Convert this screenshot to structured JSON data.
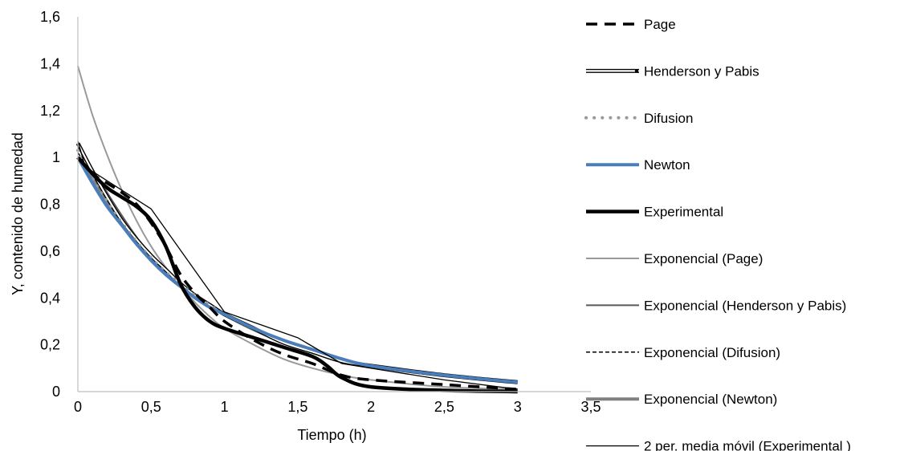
{
  "chart_data": {
    "type": "line",
    "title": "",
    "xlabel": "Tiempo (h)",
    "ylabel": "Y, contenido de humedad",
    "xlim": [
      0,
      3.5
    ],
    "ylim": [
      0,
      1.6
    ],
    "x_ticks": [
      "0",
      "0,5",
      "1",
      "1,5",
      "2",
      "2,5",
      "3",
      "3,5"
    ],
    "y_ticks": [
      "0",
      "0,2",
      "0,4",
      "0,6",
      "0,8",
      "1",
      "1,2",
      "1,4",
      "1,6"
    ],
    "grid": false,
    "legend_position": "right",
    "series": [
      {
        "name": "Page",
        "color": "#000000",
        "style": "dashed-thick",
        "x": [
          0,
          0.1,
          0.2,
          0.3,
          0.4,
          0.5,
          0.6,
          0.7,
          0.8,
          0.9,
          1.0,
          1.2,
          1.4,
          1.6,
          1.8,
          2.0,
          2.5,
          3.0
        ],
        "y": [
          1.0,
          0.93,
          0.89,
          0.85,
          0.8,
          0.72,
          0.62,
          0.5,
          0.42,
          0.36,
          0.3,
          0.22,
          0.16,
          0.12,
          0.07,
          0.05,
          0.03,
          0.01
        ]
      },
      {
        "name": "Henderson y Pabis",
        "color": "#000000",
        "style": "double",
        "x": [
          0,
          0.1,
          0.2,
          0.3,
          0.4,
          0.5,
          0.6,
          0.7,
          0.8,
          0.9,
          1.0,
          1.2,
          1.4,
          1.6,
          1.8,
          2.0,
          2.5,
          3.0
        ],
        "y": [
          1.06,
          0.94,
          0.83,
          0.73,
          0.65,
          0.58,
          0.52,
          0.46,
          0.41,
          0.37,
          0.33,
          0.27,
          0.21,
          0.17,
          0.13,
          0.11,
          0.07,
          0.04
        ]
      },
      {
        "name": "Difusion",
        "color": "#999999",
        "style": "dotted",
        "x": [
          0,
          0.1,
          0.2,
          0.3,
          0.4,
          0.5,
          0.6,
          0.7,
          0.8,
          0.9,
          1.0,
          1.2,
          1.4,
          1.6,
          1.8,
          2.0,
          2.5,
          3.0
        ],
        "y": [
          1.03,
          0.91,
          0.81,
          0.72,
          0.64,
          0.57,
          0.51,
          0.46,
          0.41,
          0.37,
          0.33,
          0.27,
          0.22,
          0.18,
          0.14,
          0.11,
          0.07,
          0.04
        ]
      },
      {
        "name": "Newton",
        "color": "#4a7ebb",
        "style": "solid-thick",
        "x": [
          0,
          0.1,
          0.2,
          0.3,
          0.4,
          0.5,
          0.6,
          0.7,
          0.8,
          0.9,
          1.0,
          1.2,
          1.4,
          1.6,
          1.8,
          2.0,
          2.5,
          3.0
        ],
        "y": [
          1.0,
          0.89,
          0.79,
          0.71,
          0.63,
          0.56,
          0.5,
          0.45,
          0.4,
          0.36,
          0.33,
          0.27,
          0.22,
          0.18,
          0.14,
          0.11,
          0.07,
          0.04
        ]
      },
      {
        "name": "Experimental",
        "color": "#000000",
        "style": "solid-xthick",
        "x": [
          0,
          0.1,
          0.2,
          0.3,
          0.4,
          0.5,
          0.6,
          0.7,
          0.8,
          0.9,
          1.0,
          1.2,
          1.4,
          1.6,
          1.7,
          1.8,
          2.0,
          2.5,
          3.0
        ],
        "y": [
          1.0,
          0.93,
          0.87,
          0.83,
          0.79,
          0.73,
          0.62,
          0.46,
          0.36,
          0.3,
          0.27,
          0.23,
          0.19,
          0.15,
          0.11,
          0.06,
          0.02,
          0.005,
          0.0
        ]
      },
      {
        "name": "Exponencial (Page)",
        "color": "#999999",
        "style": "solid",
        "x": [
          0,
          0.1,
          0.2,
          0.3,
          0.4,
          0.5,
          0.6,
          0.7,
          0.8,
          0.9,
          1.0,
          1.2,
          1.4,
          1.6,
          1.8,
          2.0,
          2.5,
          3.0
        ],
        "y": [
          1.39,
          1.18,
          1.01,
          0.86,
          0.73,
          0.62,
          0.53,
          0.45,
          0.38,
          0.32,
          0.27,
          0.2,
          0.14,
          0.1,
          0.07,
          0.05,
          0.02,
          0.01
        ]
      },
      {
        "name": "Exponencial (Henderson y Pabis)",
        "color": "#595959",
        "style": "solid",
        "x": [
          0,
          0.5,
          1.0,
          1.5,
          2.0,
          2.5,
          3.0
        ],
        "y": [
          1.05,
          0.58,
          0.33,
          0.19,
          0.11,
          0.07,
          0.04
        ]
      },
      {
        "name": "Exponencial (Difusion)",
        "color": "#000000",
        "style": "dashed-thin",
        "x": [
          0,
          0.5,
          1.0,
          1.5,
          2.0,
          2.5,
          3.0
        ],
        "y": [
          1.02,
          0.57,
          0.33,
          0.19,
          0.11,
          0.07,
          0.04
        ]
      },
      {
        "name": "Exponencial (Newton)",
        "color": "#808080",
        "style": "solid-thick",
        "x": [
          0,
          0.5,
          1.0,
          1.5,
          2.0,
          2.5,
          3.0
        ],
        "y": [
          1.0,
          0.56,
          0.33,
          0.19,
          0.11,
          0.07,
          0.04
        ]
      },
      {
        "name": "2 per. media móvil (Experimental )",
        "color": "#000000",
        "style": "solid-thin",
        "x": [
          0.0,
          0.05,
          0.5,
          1.0,
          1.5,
          1.8,
          2.5,
          3.0
        ],
        "y": [
          1.07,
          0.96,
          0.78,
          0.34,
          0.23,
          0.12,
          0.05,
          0.01
        ]
      }
    ]
  }
}
